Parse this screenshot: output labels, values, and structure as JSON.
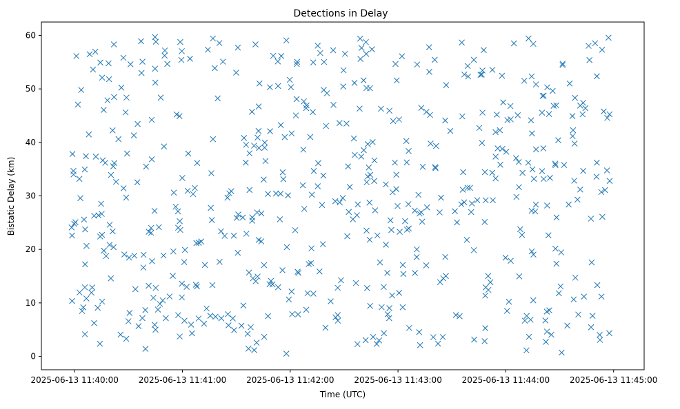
{
  "chart_data": {
    "type": "scatter",
    "title": "Detections in Delay",
    "xlabel": "Time (UTC)",
    "ylabel": "Bistatic Delay (km)",
    "marker": "x",
    "color": "#1f77b4",
    "grid": false,
    "xlim_seconds": [
      -18.5,
      317.0
    ],
    "ylim": [
      -2.5,
      62.5
    ],
    "x_ticks": [
      {
        "label": "2025-06-13 11:40:00",
        "seconds": 0
      },
      {
        "label": "2025-06-13 11:41:00",
        "seconds": 60
      },
      {
        "label": "2025-06-13 11:42:00",
        "seconds": 120
      },
      {
        "label": "2025-06-13 11:43:00",
        "seconds": 180
      },
      {
        "label": "2025-06-13 11:44:00",
        "seconds": 240
      },
      {
        "label": "2025-06-13 11:45:00",
        "seconds": 300
      }
    ],
    "y_ticks": [
      {
        "label": "0",
        "value": 0
      },
      {
        "label": "10",
        "value": 10
      },
      {
        "label": "20",
        "value": 20
      },
      {
        "label": "30",
        "value": 30
      },
      {
        "label": "40",
        "value": 40
      },
      {
        "label": "50",
        "value": 50
      },
      {
        "label": "60",
        "value": 60
      }
    ],
    "x_time_range_seconds": [
      -2,
      298
    ],
    "y_range": [
      0.5,
      59.8
    ],
    "n_points": 600,
    "seed": 20250613
  }
}
